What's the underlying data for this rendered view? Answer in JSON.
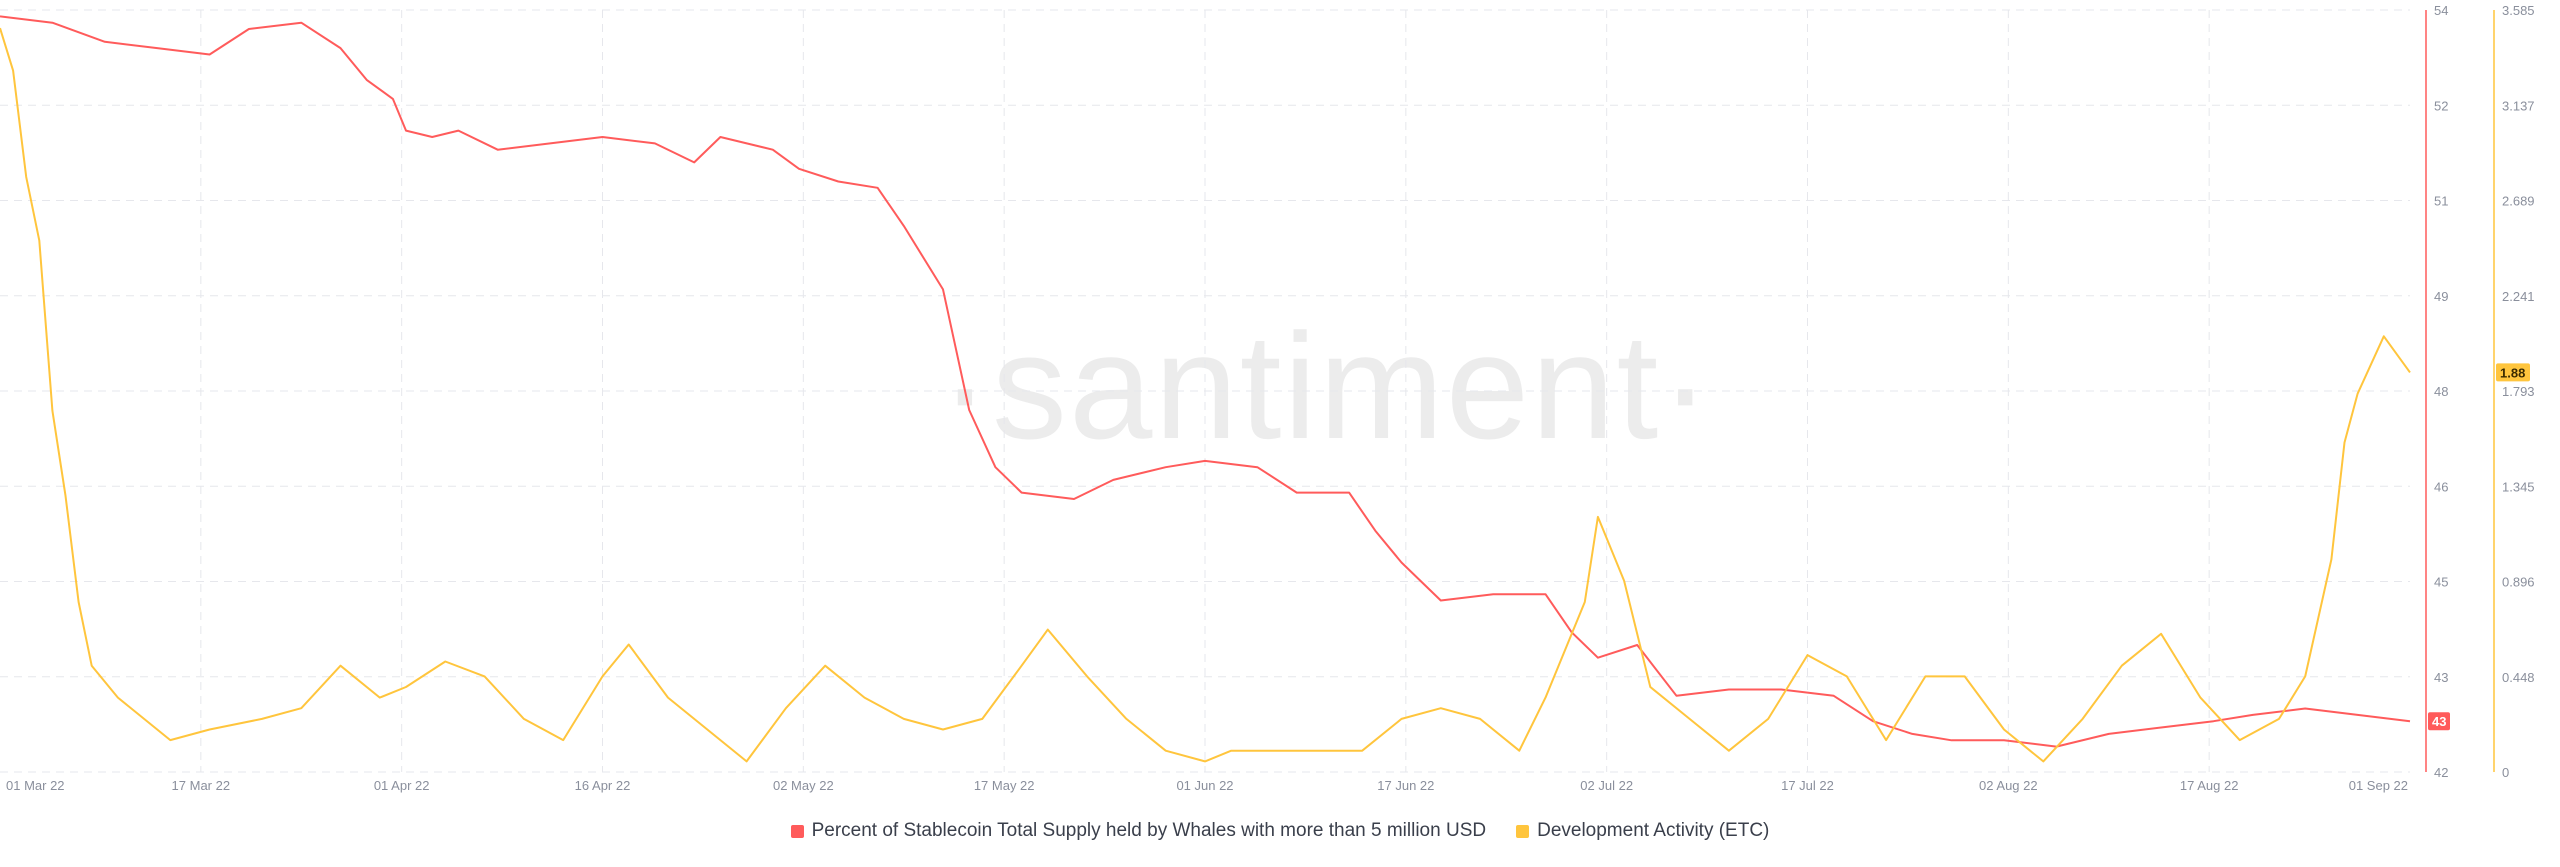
{
  "watermark": "·santiment·",
  "chart_data": {
    "type": "line",
    "x_ticks": [
      "01 Mar 22",
      "17 Mar 22",
      "01 Apr 22",
      "16 Apr 22",
      "02 May 22",
      "17 May 22",
      "01 Jun 22",
      "17 Jun 22",
      "02 Jul 22",
      "17 Jul 22",
      "02 Aug 22",
      "17 Aug 22",
      "01 Sep 22"
    ],
    "x_range": [
      "2022-03-01",
      "2022-09-01"
    ],
    "left_axis": {
      "ticks": [
        "54",
        "52",
        "51",
        "49",
        "48",
        "46",
        "45",
        "43",
        "42"
      ],
      "range": [
        42,
        54
      ],
      "color": "#ff5b5b"
    },
    "right_axis": {
      "ticks": [
        "3.585",
        "3.137",
        "2.689",
        "2.241",
        "1.793",
        "1.345",
        "0.896",
        "0.448",
        "0"
      ],
      "range": [
        0,
        3.585
      ],
      "color": "#ffc53d"
    },
    "grid": true,
    "legend_position": "bottom",
    "series": [
      {
        "name": "Percent of Stablecoin Total Supply held by Whales with more than 5 million USD",
        "axis": "left",
        "color": "#ff5b5b",
        "last_value_label": "43",
        "points": [
          [
            "2022-03-01",
            53.9
          ],
          [
            "2022-03-05",
            53.8
          ],
          [
            "2022-03-09",
            53.5
          ],
          [
            "2022-03-13",
            53.4
          ],
          [
            "2022-03-17",
            53.3
          ],
          [
            "2022-03-20",
            53.7
          ],
          [
            "2022-03-24",
            53.8
          ],
          [
            "2022-03-27",
            53.4
          ],
          [
            "2022-03-29",
            52.9
          ],
          [
            "2022-03-31",
            52.6
          ],
          [
            "2022-04-01",
            52.1
          ],
          [
            "2022-04-03",
            52.0
          ],
          [
            "2022-04-05",
            52.1
          ],
          [
            "2022-04-08",
            51.8
          ],
          [
            "2022-04-12",
            51.9
          ],
          [
            "2022-04-16",
            52.0
          ],
          [
            "2022-04-20",
            51.9
          ],
          [
            "2022-04-23",
            51.6
          ],
          [
            "2022-04-25",
            52.0
          ],
          [
            "2022-04-29",
            51.8
          ],
          [
            "2022-05-01",
            51.5
          ],
          [
            "2022-05-04",
            51.3
          ],
          [
            "2022-05-07",
            51.2
          ],
          [
            "2022-05-09",
            50.6
          ],
          [
            "2022-05-12",
            49.6
          ],
          [
            "2022-05-14",
            47.7
          ],
          [
            "2022-05-16",
            46.8
          ],
          [
            "2022-05-18",
            46.4
          ],
          [
            "2022-05-22",
            46.3
          ],
          [
            "2022-05-25",
            46.6
          ],
          [
            "2022-05-29",
            46.8
          ],
          [
            "2022-06-01",
            46.9
          ],
          [
            "2022-06-05",
            46.8
          ],
          [
            "2022-06-08",
            46.4
          ],
          [
            "2022-06-12",
            46.4
          ],
          [
            "2022-06-14",
            45.8
          ],
          [
            "2022-06-16",
            45.3
          ],
          [
            "2022-06-19",
            44.7
          ],
          [
            "2022-06-23",
            44.8
          ],
          [
            "2022-06-27",
            44.8
          ],
          [
            "2022-06-29",
            44.2
          ],
          [
            "2022-07-01",
            43.8
          ],
          [
            "2022-07-04",
            44.0
          ],
          [
            "2022-07-07",
            43.2
          ],
          [
            "2022-07-11",
            43.3
          ],
          [
            "2022-07-15",
            43.3
          ],
          [
            "2022-07-19",
            43.2
          ],
          [
            "2022-07-22",
            42.8
          ],
          [
            "2022-07-25",
            42.6
          ],
          [
            "2022-07-28",
            42.5
          ],
          [
            "2022-08-01",
            42.5
          ],
          [
            "2022-08-05",
            42.4
          ],
          [
            "2022-08-09",
            42.6
          ],
          [
            "2022-08-13",
            42.7
          ],
          [
            "2022-08-17",
            42.8
          ],
          [
            "2022-08-20",
            42.9
          ],
          [
            "2022-08-24",
            43.0
          ],
          [
            "2022-08-28",
            42.9
          ],
          [
            "2022-09-01",
            42.8
          ]
        ]
      },
      {
        "name": "Development Activity (ETC)",
        "axis": "right",
        "color": "#ffc53d",
        "last_value_label": "1.88",
        "points": [
          [
            "2022-03-01",
            3.5
          ],
          [
            "2022-03-02",
            3.3
          ],
          [
            "2022-03-03",
            2.8
          ],
          [
            "2022-03-04",
            2.5
          ],
          [
            "2022-03-05",
            1.7
          ],
          [
            "2022-03-06",
            1.3
          ],
          [
            "2022-03-07",
            0.8
          ],
          [
            "2022-03-08",
            0.5
          ],
          [
            "2022-03-10",
            0.35
          ],
          [
            "2022-03-12",
            0.25
          ],
          [
            "2022-03-14",
            0.15
          ],
          [
            "2022-03-17",
            0.2
          ],
          [
            "2022-03-21",
            0.25
          ],
          [
            "2022-03-24",
            0.3
          ],
          [
            "2022-03-27",
            0.5
          ],
          [
            "2022-03-30",
            0.35
          ],
          [
            "2022-04-01",
            0.4
          ],
          [
            "2022-04-04",
            0.52
          ],
          [
            "2022-04-07",
            0.45
          ],
          [
            "2022-04-10",
            0.25
          ],
          [
            "2022-04-13",
            0.15
          ],
          [
            "2022-04-16",
            0.45
          ],
          [
            "2022-04-18",
            0.6
          ],
          [
            "2022-04-21",
            0.35
          ],
          [
            "2022-04-24",
            0.2
          ],
          [
            "2022-04-27",
            0.05
          ],
          [
            "2022-04-30",
            0.3
          ],
          [
            "2022-05-03",
            0.5
          ],
          [
            "2022-05-06",
            0.35
          ],
          [
            "2022-05-09",
            0.25
          ],
          [
            "2022-05-12",
            0.2
          ],
          [
            "2022-05-15",
            0.25
          ],
          [
            "2022-05-18",
            0.5
          ],
          [
            "2022-05-20",
            0.67
          ],
          [
            "2022-05-23",
            0.45
          ],
          [
            "2022-05-26",
            0.25
          ],
          [
            "2022-05-29",
            0.1
          ],
          [
            "2022-06-01",
            0.05
          ],
          [
            "2022-06-03",
            0.1
          ],
          [
            "2022-06-07",
            0.1
          ],
          [
            "2022-06-10",
            0.1
          ],
          [
            "2022-06-13",
            0.1
          ],
          [
            "2022-06-16",
            0.25
          ],
          [
            "2022-06-19",
            0.3
          ],
          [
            "2022-06-22",
            0.25
          ],
          [
            "2022-06-25",
            0.1
          ],
          [
            "2022-06-27",
            0.35
          ],
          [
            "2022-06-30",
            0.8
          ],
          [
            "2022-07-01",
            1.2
          ],
          [
            "2022-07-03",
            0.9
          ],
          [
            "2022-07-05",
            0.4
          ],
          [
            "2022-07-08",
            0.25
          ],
          [
            "2022-07-11",
            0.1
          ],
          [
            "2022-07-14",
            0.25
          ],
          [
            "2022-07-17",
            0.55
          ],
          [
            "2022-07-20",
            0.45
          ],
          [
            "2022-07-23",
            0.15
          ],
          [
            "2022-07-26",
            0.45
          ],
          [
            "2022-07-29",
            0.45
          ],
          [
            "2022-08-01",
            0.2
          ],
          [
            "2022-08-04",
            0.05
          ],
          [
            "2022-08-07",
            0.25
          ],
          [
            "2022-08-10",
            0.5
          ],
          [
            "2022-08-13",
            0.65
          ],
          [
            "2022-08-16",
            0.35
          ],
          [
            "2022-08-19",
            0.15
          ],
          [
            "2022-08-22",
            0.25
          ],
          [
            "2022-08-24",
            0.45
          ],
          [
            "2022-08-26",
            1.0
          ],
          [
            "2022-08-27",
            1.55
          ],
          [
            "2022-08-28",
            1.78
          ],
          [
            "2022-08-30",
            2.05
          ],
          [
            "2022-09-01",
            1.88
          ]
        ]
      }
    ]
  }
}
